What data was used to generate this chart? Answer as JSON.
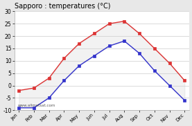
{
  "title": "Sapporo : temperatures (°C)",
  "months": [
    "Jan",
    "Feb",
    "Mar",
    "Apr",
    "May",
    "Jun",
    "Jul",
    "Aug",
    "Sep",
    "Oct",
    "Nov",
    "Dec"
  ],
  "max_temps": [
    -2,
    -1,
    3,
    11,
    17,
    21,
    25,
    26,
    21,
    15,
    9,
    2
  ],
  "min_temps": [
    -9,
    -9,
    -5,
    2,
    8,
    12,
    16,
    18,
    13,
    6,
    0,
    -6
  ],
  "max_color": "#dd3333",
  "min_color": "#3333cc",
  "max_fill": "#f0a0a0",
  "min_fill": "#a0a0f0",
  "ylim": [
    -10,
    30
  ],
  "yticks": [
    -10,
    -5,
    0,
    5,
    10,
    15,
    20,
    25,
    30
  ],
  "plot_bg": "#ffffff",
  "outer_bg": "#e8e8e8",
  "grid_color": "#cccccc",
  "watermark": "www.allmetsat.com"
}
